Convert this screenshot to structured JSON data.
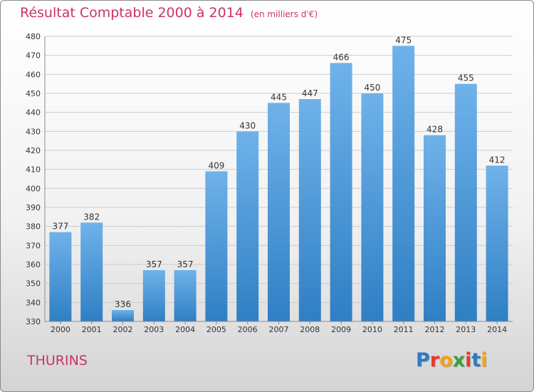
{
  "header": {
    "title": "Résultat Comptable 2000 à 2014",
    "subtitle": "(en milliers d'€)"
  },
  "footer": {
    "place": "THURINS",
    "logo_letters": [
      "P",
      "r",
      "o",
      "x",
      "i",
      "t",
      "i"
    ],
    "logo_text": "Proxiti"
  },
  "colors": {
    "title": "#cc3366",
    "bar_top": "#6fb2ea",
    "bar_bottom": "#2f7fc4",
    "logo": [
      "#2e7bc8",
      "#e53a2a",
      "#f2a21a",
      "#3aa13a",
      "#e53a2a",
      "#2e7bc8",
      "#f2a21a"
    ]
  },
  "chart_data": {
    "type": "bar",
    "title": "Résultat Comptable 2000 à 2014",
    "xlabel": "",
    "ylabel": "",
    "categories": [
      "2000",
      "2001",
      "2002",
      "2003",
      "2004",
      "2005",
      "2006",
      "2007",
      "2008",
      "2009",
      "2010",
      "2011",
      "2012",
      "2013",
      "2014"
    ],
    "values": [
      377,
      382,
      336,
      357,
      357,
      409,
      430,
      445,
      447,
      466,
      450,
      475,
      428,
      455,
      412
    ],
    "ylim": [
      330,
      480
    ],
    "yticks": [
      330,
      340,
      350,
      360,
      370,
      380,
      390,
      400,
      410,
      420,
      430,
      440,
      450,
      460,
      470,
      480
    ],
    "grid": true,
    "legend": "none"
  }
}
